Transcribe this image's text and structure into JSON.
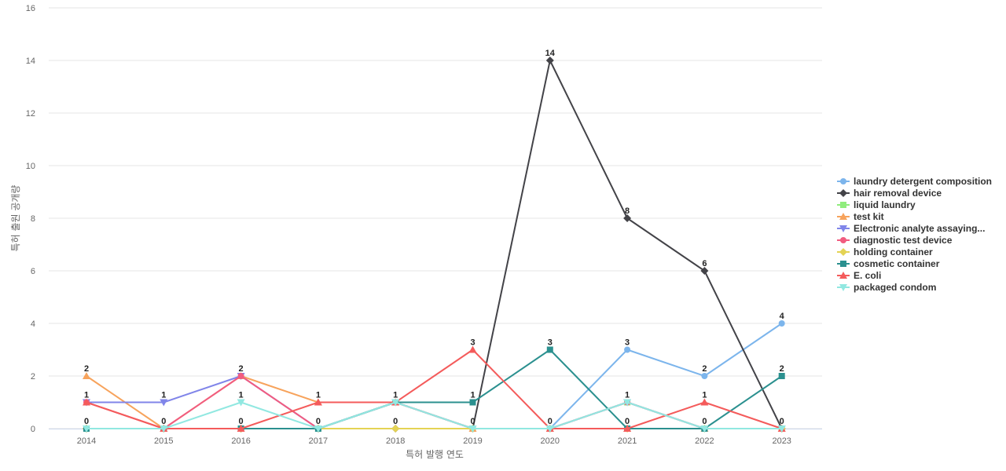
{
  "chart_data": {
    "type": "line",
    "title": "",
    "xlabel": "특허 발행 연도",
    "ylabel": "특허 출원 공개량",
    "ylim": [
      0,
      16
    ],
    "yticks": [
      "0",
      "2",
      "4",
      "6",
      "8",
      "10",
      "12",
      "14",
      "16"
    ],
    "grid": true,
    "legend_position": "right",
    "categories": [
      "2014",
      "2015",
      "2016",
      "2017",
      "2018",
      "2019",
      "2020",
      "2021",
      "2022",
      "2023"
    ],
    "series": [
      {
        "name": "laundry detergent composition",
        "color": "#7cb5ec",
        "marker": "circle",
        "values": [
          0,
          0,
          0,
          0,
          1,
          0,
          0,
          3,
          2,
          4
        ]
      },
      {
        "name": "hair removal device",
        "color": "#434348",
        "marker": "diamond",
        "values": [
          0,
          0,
          0,
          0,
          0,
          0,
          14,
          8,
          6,
          0
        ]
      },
      {
        "name": "liquid laundry",
        "color": "#90ed7d",
        "marker": "square",
        "values": [
          0,
          0,
          0,
          0,
          1,
          0,
          0,
          1,
          0,
          0
        ]
      },
      {
        "name": "test kit",
        "color": "#f7a35c",
        "marker": "triangle",
        "values": [
          2,
          0,
          2,
          1,
          1,
          0,
          0,
          0,
          0,
          0
        ]
      },
      {
        "name": "Electronic analyte assaying...",
        "color": "#8085e9",
        "marker": "triangle-down",
        "values": [
          1,
          1,
          2,
          0,
          1,
          0,
          0,
          1,
          0,
          0
        ]
      },
      {
        "name": "diagnostic test device",
        "color": "#f15c80",
        "marker": "circle",
        "values": [
          1,
          0,
          2,
          0,
          1,
          0,
          0,
          1,
          0,
          0
        ]
      },
      {
        "name": "holding container",
        "color": "#e4d354",
        "marker": "diamond",
        "values": [
          0,
          0,
          0,
          0,
          0,
          0,
          0,
          0,
          0,
          0
        ]
      },
      {
        "name": "cosmetic container",
        "color": "#2b908f",
        "marker": "square",
        "values": [
          0,
          0,
          0,
          0,
          1,
          1,
          3,
          0,
          0,
          2
        ]
      },
      {
        "name": "E. coli",
        "color": "#f45b5b",
        "marker": "triangle",
        "values": [
          1,
          0,
          0,
          1,
          1,
          3,
          0,
          0,
          1,
          0
        ]
      },
      {
        "name": "packaged condom",
        "color": "#91e8e1",
        "marker": "triangle-down",
        "values": [
          0,
          0,
          1,
          0,
          1,
          0,
          0,
          1,
          0,
          0
        ]
      }
    ],
    "data_labels": [
      {
        "x": "2014",
        "value": 2,
        "row": "top"
      },
      {
        "x": "2014",
        "value": 1,
        "row": "middle"
      },
      {
        "x": "2014",
        "value": 0,
        "row": "bottom"
      },
      {
        "x": "2015",
        "value": 1,
        "row": "top"
      },
      {
        "x": "2015",
        "value": 0,
        "row": "bottom"
      },
      {
        "x": "2016",
        "value": 2,
        "row": "top"
      },
      {
        "x": "2016",
        "value": 1,
        "row": "middle"
      },
      {
        "x": "2016",
        "value": 0,
        "row": "bottom"
      },
      {
        "x": "2017",
        "value": 1,
        "row": "top"
      },
      {
        "x": "2017",
        "value": 0,
        "row": "bottom"
      },
      {
        "x": "2018",
        "value": 1,
        "row": "top"
      },
      {
        "x": "2018",
        "value": 0,
        "row": "bottom"
      },
      {
        "x": "2019",
        "value": 3,
        "row": "top"
      },
      {
        "x": "2019",
        "value": 1,
        "row": "middle"
      },
      {
        "x": "2019",
        "value": 0,
        "row": "bottom"
      },
      {
        "x": "2020",
        "value": 14,
        "row": "top"
      },
      {
        "x": "2020",
        "value": 3,
        "row": "middle"
      },
      {
        "x": "2020",
        "value": 0,
        "row": "bottom"
      },
      {
        "x": "2021",
        "value": 8,
        "row": "top"
      },
      {
        "x": "2021",
        "value": 3,
        "row": "middle"
      },
      {
        "x": "2021",
        "value": 1,
        "row": "middle"
      },
      {
        "x": "2021",
        "value": 0,
        "row": "bottom"
      },
      {
        "x": "2022",
        "value": 6,
        "row": "top"
      },
      {
        "x": "2022",
        "value": 2,
        "row": "middle"
      },
      {
        "x": "2022",
        "value": 1,
        "row": "middle"
      },
      {
        "x": "2022",
        "value": 0,
        "row": "bottom"
      },
      {
        "x": "2023",
        "value": 4,
        "row": "top"
      },
      {
        "x": "2023",
        "value": 2,
        "row": "middle"
      },
      {
        "x": "2023",
        "value": 0,
        "row": "bottom"
      }
    ]
  }
}
